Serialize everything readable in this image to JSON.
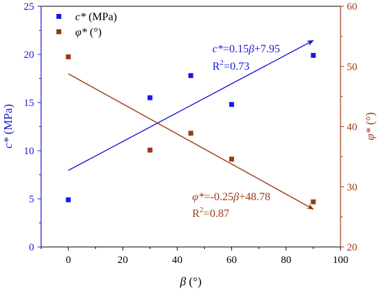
{
  "chart_data": {
    "type": "scatter",
    "x_axis": {
      "label": "β (°)",
      "label_parts": [
        {
          "text": "β",
          "italic": true
        },
        {
          "text": " (°)",
          "italic": false
        }
      ],
      "range": [
        -10,
        100
      ],
      "ticks": [
        0,
        20,
        40,
        60,
        80,
        100
      ],
      "tick_labels": [
        "0",
        "20",
        "40",
        "60",
        "80",
        "100"
      ]
    },
    "y_axis_left": {
      "label": "c* (MPa)",
      "label_parts": [
        {
          "text": "c*",
          "italic": true
        },
        {
          "text": " (MPa)",
          "italic": false
        }
      ],
      "range": [
        0,
        25
      ],
      "ticks": [
        0,
        5,
        10,
        15,
        20,
        25
      ],
      "tick_labels": [
        "0",
        "5",
        "10",
        "15",
        "20",
        "25"
      ],
      "color": "#1818d8"
    },
    "y_axis_right": {
      "label": "φ* (°)",
      "label_parts": [
        {
          "text": "φ*",
          "italic": true
        },
        {
          "text": " (°)",
          "italic": false
        }
      ],
      "range": [
        20,
        60
      ],
      "ticks": [
        20,
        30,
        40,
        50,
        60
      ],
      "tick_labels": [
        "20",
        "30",
        "40",
        "50",
        "60"
      ],
      "color": "#9a3a16"
    },
    "series": [
      {
        "name": "c* (MPa)",
        "name_parts": [
          {
            "text": "c*",
            "italic": true
          },
          {
            "text": " (MPa)",
            "italic": false
          }
        ],
        "axis": "left",
        "color": "#1818e8",
        "marker": "square",
        "x": [
          0,
          30,
          45,
          60,
          90
        ],
        "y": [
          4.9,
          15.5,
          17.8,
          14.8,
          19.9
        ]
      },
      {
        "name": "φ* (°)",
        "name_parts": [
          {
            "text": "φ*",
            "italic": true
          },
          {
            "text": " (°)",
            "italic": false
          }
        ],
        "axis": "right",
        "color": "#9a3a16",
        "marker": "square",
        "x": [
          0,
          30,
          45,
          60,
          90
        ],
        "y": [
          51.6,
          36.1,
          38.9,
          34.6,
          27.5
        ]
      }
    ],
    "fits": [
      {
        "series": "c* (MPa)",
        "axis": "left",
        "color": "#1818d8",
        "slope": 0.15,
        "intercept": 7.95,
        "x_range": [
          0,
          90
        ],
        "arrow": true,
        "equation_parts": [
          {
            "text": "c*",
            "italic": true
          },
          {
            "text": "=0.15",
            "italic": false
          },
          {
            "text": "β",
            "italic": true
          },
          {
            "text": "+7.95",
            "italic": false
          }
        ],
        "r2_prefix": "R",
        "r2_sup": "2",
        "r2_value": "=0.73"
      },
      {
        "series": "φ* (°)",
        "axis": "right",
        "color": "#9a3a16",
        "slope": -0.25,
        "intercept": 48.78,
        "x_range": [
          0,
          90
        ],
        "arrow": true,
        "equation_parts": [
          {
            "text": "φ*",
            "italic": true
          },
          {
            "text": "=-0.25",
            "italic": false
          },
          {
            "text": "β",
            "italic": true
          },
          {
            "text": "+48.78",
            "italic": false
          }
        ],
        "r2_prefix": "R",
        "r2_sup": "2",
        "r2_value": "=0.87"
      }
    ],
    "legend": {
      "placement": "top-left"
    },
    "grid": false
  }
}
